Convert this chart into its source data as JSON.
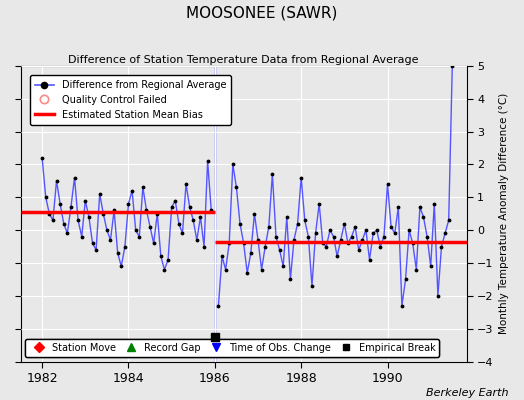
{
  "title": "MOOSONEE (SAWR)",
  "subtitle": "Difference of Station Temperature Data from Regional Average",
  "ylabel": "Monthly Temperature Anomaly Difference (°C)",
  "xlabel_ticks": [
    1982,
    1984,
    1986,
    1988,
    1990
  ],
  "ylim": [
    -4,
    5
  ],
  "yticks": [
    -4,
    -3,
    -2,
    -1,
    0,
    1,
    2,
    3,
    4,
    5
  ],
  "xlim": [
    1981.5,
    1991.83
  ],
  "bg_color": "#e8e8e8",
  "plot_bg_color": "#e8e8e8",
  "line_color": "#5555ff",
  "bias1_y": 0.55,
  "bias1_xstart": 1981.5,
  "bias1_xend": 1986.0,
  "bias2_y": -0.35,
  "bias2_xstart": 1986.0,
  "bias2_xend": 1991.83,
  "empirical_break_x": 1986.0,
  "empirical_break_y": -3.25,
  "data_x": [
    1982.0,
    1982.083,
    1982.167,
    1982.25,
    1982.333,
    1982.417,
    1982.5,
    1982.583,
    1982.667,
    1982.75,
    1982.833,
    1982.917,
    1983.0,
    1983.083,
    1983.167,
    1983.25,
    1983.333,
    1983.417,
    1983.5,
    1983.583,
    1983.667,
    1983.75,
    1983.833,
    1983.917,
    1984.0,
    1984.083,
    1984.167,
    1984.25,
    1984.333,
    1984.417,
    1984.5,
    1984.583,
    1984.667,
    1984.75,
    1984.833,
    1984.917,
    1985.0,
    1985.083,
    1985.167,
    1985.25,
    1985.333,
    1985.417,
    1985.5,
    1985.583,
    1985.667,
    1985.75,
    1985.833,
    1985.917,
    1986.083,
    1986.167,
    1986.25,
    1986.333,
    1986.417,
    1986.5,
    1986.583,
    1986.667,
    1986.75,
    1986.833,
    1986.917,
    1987.0,
    1987.083,
    1987.167,
    1987.25,
    1987.333,
    1987.417,
    1987.5,
    1987.583,
    1987.667,
    1987.75,
    1987.833,
    1987.917,
    1988.0,
    1988.083,
    1988.167,
    1988.25,
    1988.333,
    1988.417,
    1988.5,
    1988.583,
    1988.667,
    1988.75,
    1988.833,
    1988.917,
    1989.0,
    1989.083,
    1989.167,
    1989.25,
    1989.333,
    1989.417,
    1989.5,
    1989.583,
    1989.667,
    1989.75,
    1989.833,
    1989.917,
    1990.0,
    1990.083,
    1990.167,
    1990.25,
    1990.333,
    1990.417,
    1990.5,
    1990.583,
    1990.667,
    1990.75,
    1990.833,
    1990.917,
    1991.0,
    1991.083,
    1991.167,
    1991.25,
    1991.333,
    1991.417,
    1991.5
  ],
  "data_y": [
    2.2,
    1.0,
    0.5,
    0.3,
    1.5,
    0.8,
    0.2,
    -0.1,
    0.7,
    1.6,
    0.3,
    -0.2,
    0.9,
    0.4,
    -0.4,
    -0.6,
    1.1,
    0.5,
    0.0,
    -0.3,
    0.6,
    -0.7,
    -1.1,
    -0.5,
    0.8,
    1.2,
    0.0,
    -0.2,
    1.3,
    0.6,
    0.1,
    -0.4,
    0.5,
    -0.8,
    -1.2,
    -0.9,
    0.7,
    0.9,
    0.2,
    -0.1,
    1.4,
    0.7,
    0.3,
    -0.3,
    0.4,
    -0.5,
    2.1,
    0.6,
    -2.3,
    -0.8,
    -1.2,
    -0.4,
    2.0,
    1.3,
    0.2,
    -0.4,
    -1.3,
    -0.7,
    0.5,
    -0.3,
    -1.2,
    -0.5,
    0.1,
    1.7,
    -0.2,
    -0.6,
    -1.1,
    0.4,
    -1.5,
    -0.3,
    0.2,
    1.6,
    0.3,
    -0.2,
    -1.7,
    -0.1,
    0.8,
    -0.4,
    -0.5,
    0.0,
    -0.2,
    -0.8,
    -0.3,
    0.2,
    -0.4,
    -0.2,
    0.1,
    -0.6,
    -0.3,
    0.0,
    -0.9,
    -0.1,
    0.0,
    -0.5,
    -0.2,
    1.4,
    0.1,
    -0.1,
    0.7,
    -2.3,
    -1.5,
    0.0,
    -0.4,
    -1.2,
    0.7,
    0.4,
    -0.2,
    -1.1,
    0.8,
    -2.0,
    -0.5,
    -0.1,
    0.3,
    5.0
  ]
}
